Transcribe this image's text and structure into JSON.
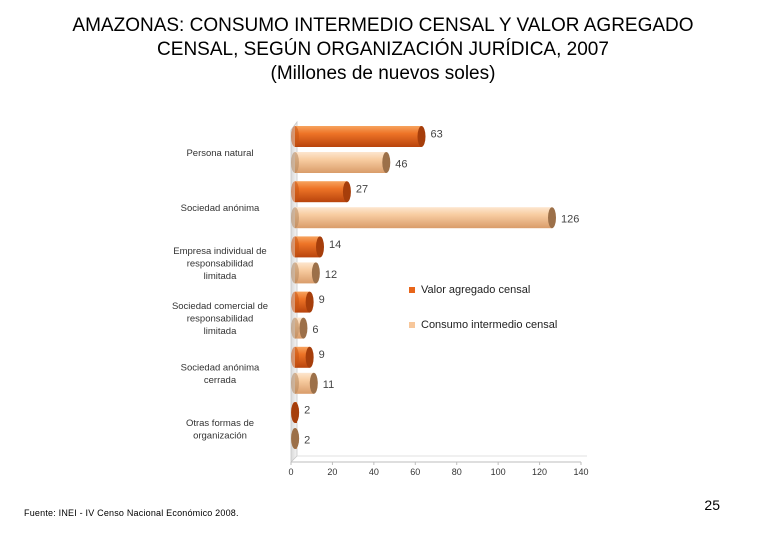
{
  "title": {
    "line1": "AMAZONAS: CONSUMO INTERMEDIO CENSAL Y VALOR AGREGADO",
    "line2": "CENSAL, SEGÚN ORGANIZACIÓN JURÍDICA, 2007",
    "line3": "(Millones de nuevos soles)"
  },
  "chart_data": {
    "type": "bar",
    "orientation": "horizontal",
    "style": "3d-cylinder",
    "categories": [
      "Persona natural",
      "Sociedad anónima",
      "Empresa individual de responsabilidad limitada",
      "Sociedad comercial de responsabilidad limitada",
      "Sociedad anónima cerrada",
      "Otras formas de organización"
    ],
    "category_lines": [
      [
        "Persona natural"
      ],
      [
        "Sociedad anónima"
      ],
      [
        "Empresa individual de",
        "responsabilidad",
        "limitada"
      ],
      [
        "Sociedad comercial de",
        "responsabilidad",
        "limitada"
      ],
      [
        "Sociedad anónima",
        "cerrada"
      ],
      [
        "Otras formas de",
        "organización"
      ]
    ],
    "series": [
      {
        "name": "Valor agregado censal",
        "color": "#E8651A",
        "values": [
          63,
          27,
          14,
          9,
          9,
          2
        ]
      },
      {
        "name": "Consumo intermedio censal",
        "color": "#F7C79B",
        "values": [
          46,
          126,
          12,
          6,
          11,
          2
        ]
      }
    ],
    "xlim": [
      0,
      140
    ],
    "xticks": [
      0,
      20,
      40,
      60,
      80,
      100,
      120,
      140
    ],
    "xlabel": "",
    "ylabel": "",
    "legend_position": "right"
  },
  "footer": {
    "source": "Fuente: INEI - IV Censo Nacional Económico 2008.",
    "page_number": "25"
  }
}
